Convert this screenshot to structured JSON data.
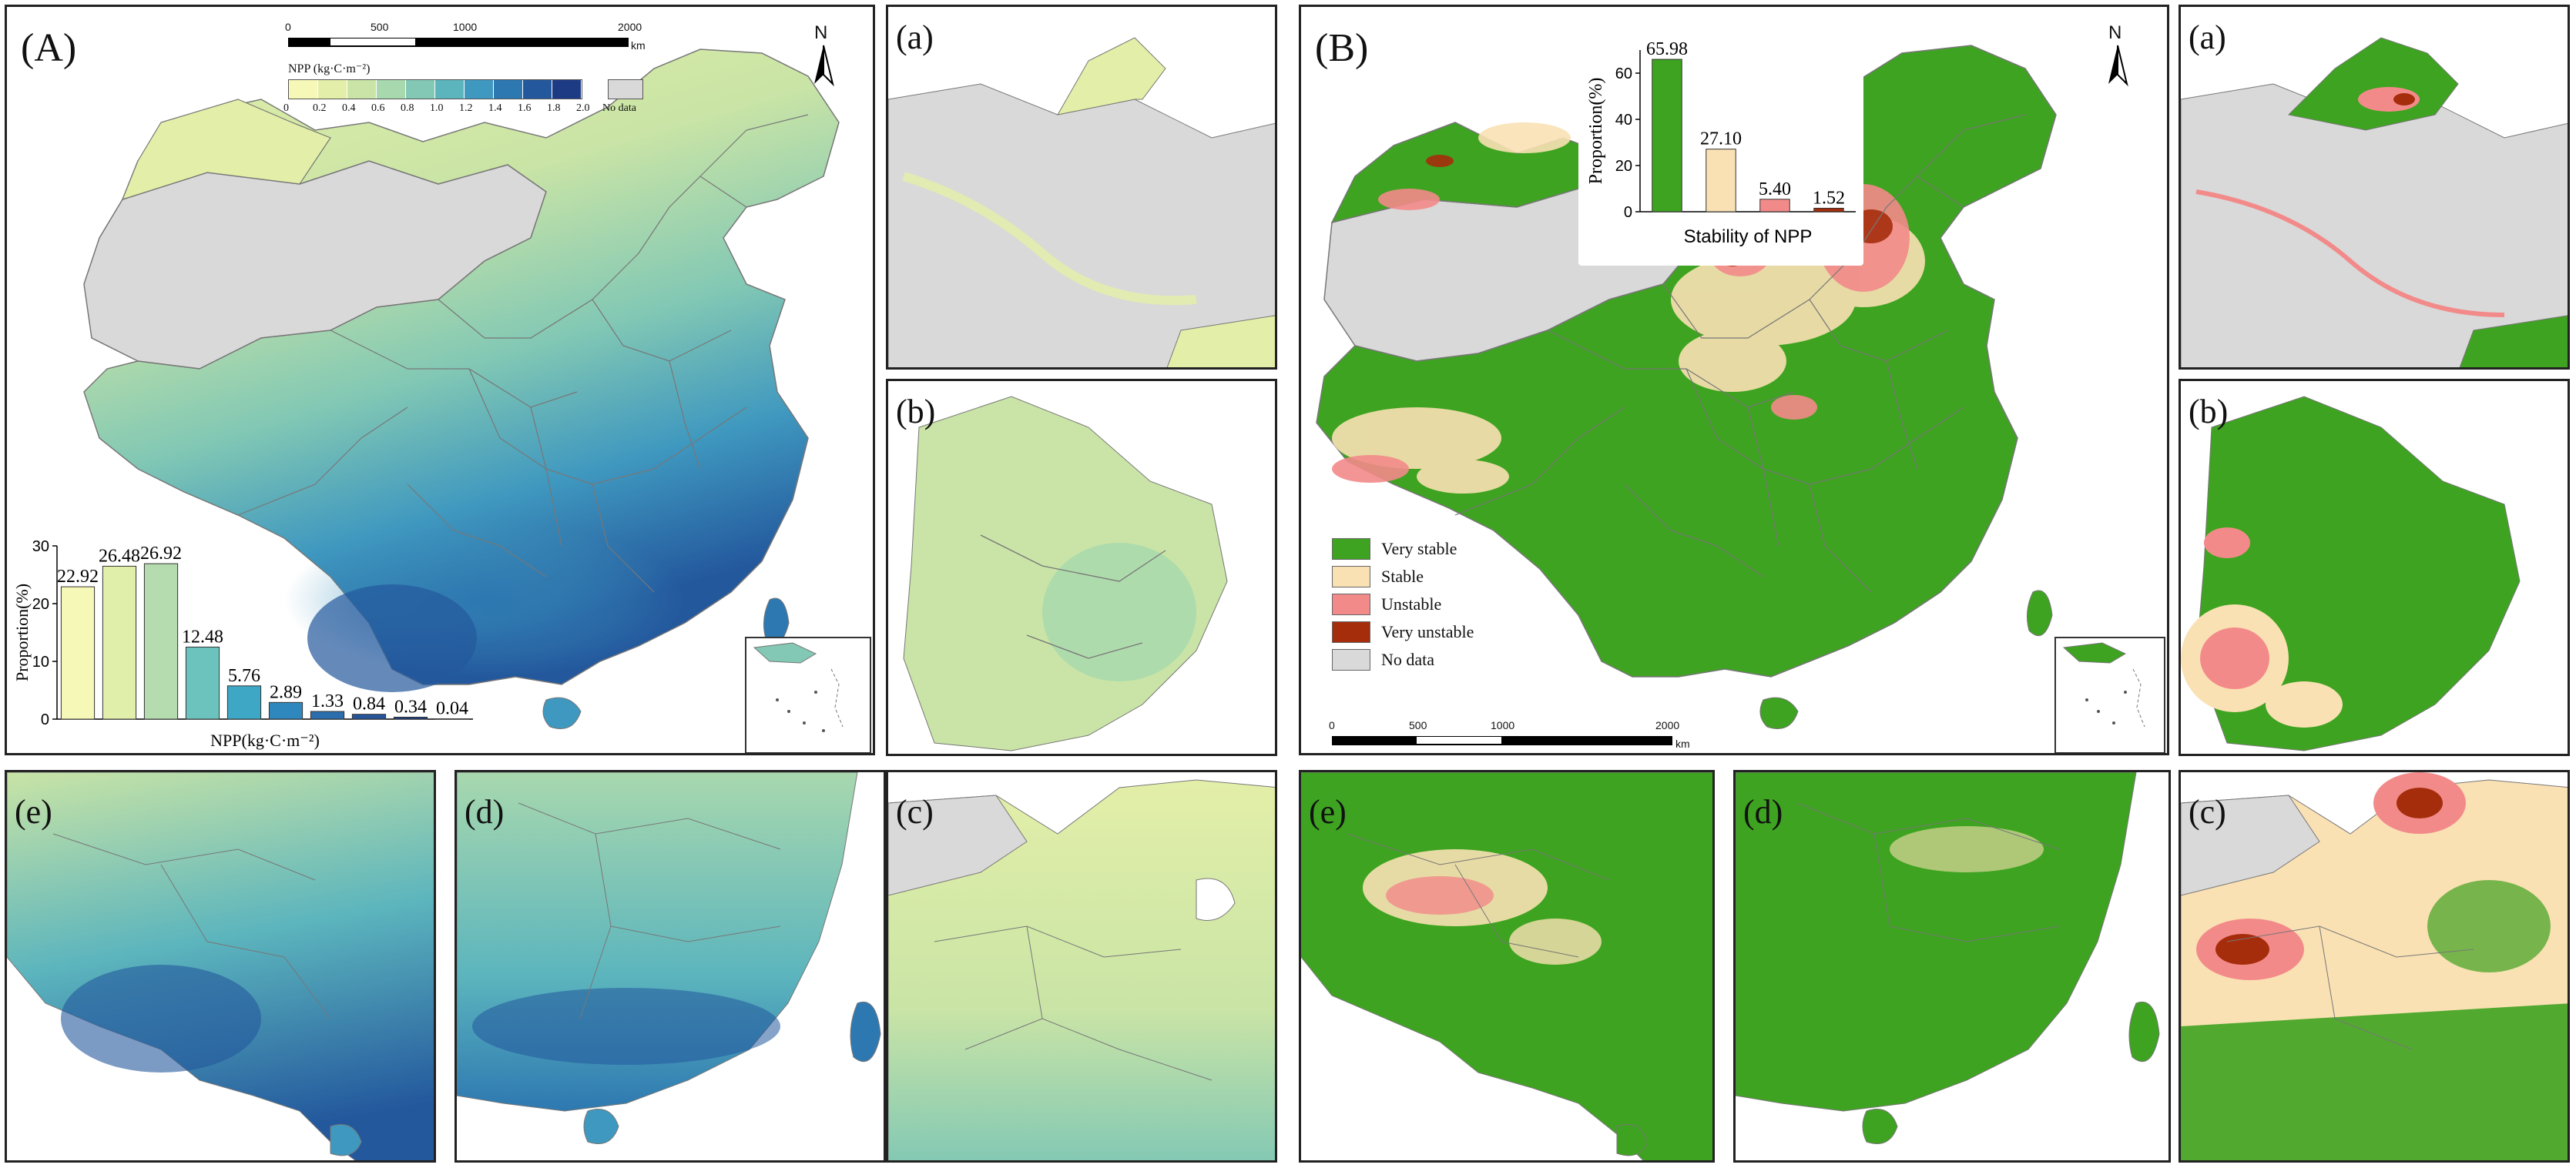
{
  "panels": {
    "A": {
      "label": "(A)"
    },
    "B": {
      "label": "(B)"
    },
    "left_subpanels": {
      "a": "(a)",
      "b": "(b)",
      "c": "(c)",
      "d": "(d)",
      "e": "(e)"
    },
    "right_subpanels": {
      "a": "(a)",
      "b": "(b)",
      "c": "(c)",
      "d": "(d)",
      "e": "(e)"
    }
  },
  "north_arrow": {
    "letter": "N"
  },
  "scale_bar": {
    "ticks": [
      "0",
      "500",
      "1000",
      "2000"
    ],
    "unit": "km"
  },
  "npp_legend": {
    "title": "NPP (kg·C·m⁻²)",
    "classes": [
      "0",
      "0.2",
      "0.4",
      "0.6",
      "0.8",
      "1.0",
      "1.2",
      "1.4",
      "1.6",
      "1.8",
      "2.0"
    ],
    "no_data": "No data",
    "colors": [
      "#f6f8b8",
      "#e3efa8",
      "#c9e4a6",
      "#a8d8ae",
      "#82c8b4",
      "#5cb5bd",
      "#3f98bf",
      "#2d78b1",
      "#23589d",
      "#1d3a85"
    ],
    "no_data_color": "#d9d9d9"
  },
  "stability_legend": {
    "items": [
      {
        "label": "Very stable",
        "color": "#3ea320"
      },
      {
        "label": "Stable",
        "color": "#fae1b4"
      },
      {
        "label": "Unstable",
        "color": "#f38a8a"
      },
      {
        "label": "Very unstable",
        "color": "#a52d0c"
      },
      {
        "label": "No data",
        "color": "#d9d9d9"
      }
    ]
  },
  "chart_data": [
    {
      "type": "bar",
      "title": "",
      "xlabel": "NPP(kg·C·m⁻²)",
      "ylabel": "Proportion(%)",
      "ylim": [
        0,
        30
      ],
      "yticks": [
        "0",
        "10",
        "20",
        "30"
      ],
      "values": [
        22.92,
        26.48,
        26.92,
        12.48,
        5.76,
        2.89,
        1.33,
        0.84,
        0.34,
        0.04
      ],
      "value_labels": [
        "22.92",
        "26.48",
        "26.92",
        "12.48",
        "5.76",
        "2.89",
        "1.33",
        "0.84",
        "0.34",
        "0.04"
      ],
      "colors": [
        "#f6f8b8",
        "#e0efa9",
        "#b5dcae",
        "#6cc2bc",
        "#3ea7c6",
        "#2e88bd",
        "#2a6eae",
        "#24559a",
        "#1f3f89",
        "#1a2b74"
      ]
    },
    {
      "type": "bar",
      "title": "",
      "xlabel": "Stability of NPP",
      "ylabel": "Proportion(%)",
      "ylim": [
        0,
        70
      ],
      "yticks": [
        "0",
        "20",
        "40",
        "60"
      ],
      "values": [
        65.98,
        27.1,
        5.4,
        1.52
      ],
      "value_labels": [
        "65.98",
        "27.10",
        "5.40",
        "1.52"
      ],
      "colors": [
        "#3ea320",
        "#fae1b4",
        "#f38a8a",
        "#a52d0c"
      ]
    }
  ]
}
